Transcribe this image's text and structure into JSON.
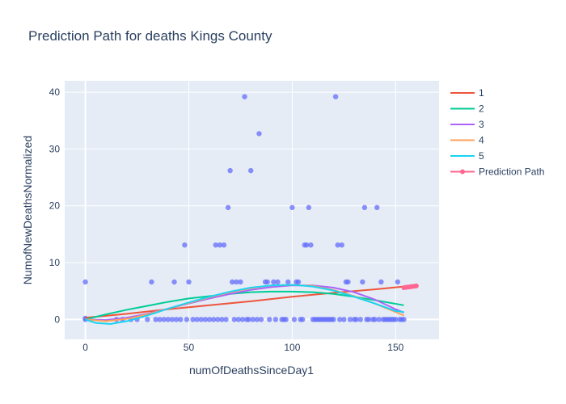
{
  "chart_data": {
    "type": "scatter",
    "title": "Prediction Path for deaths Kings County",
    "xlabel": "numOfDeathsSinceDay1",
    "ylabel": "NumofNewDeathsNormalized",
    "xlim": [
      -10,
      171
    ],
    "ylim": [
      -3.5,
      42
    ],
    "xticks": [
      0,
      50,
      100,
      150
    ],
    "yticks": [
      0,
      10,
      20,
      30,
      40
    ],
    "grid": true,
    "legend_position": "top-right",
    "scatter_color": "#636efa",
    "scatter_points": [
      [
        0,
        6.6
      ],
      [
        0,
        0.2
      ],
      [
        0,
        0.0
      ],
      [
        32,
        6.6
      ],
      [
        43,
        6.6
      ],
      [
        48,
        13.1
      ],
      [
        50,
        6.6
      ],
      [
        63,
        13.1
      ],
      [
        65,
        13.1
      ],
      [
        67,
        13.1
      ],
      [
        69,
        19.7
      ],
      [
        70,
        26.2
      ],
      [
        71,
        6.6
      ],
      [
        73,
        6.6
      ],
      [
        75,
        6.6
      ],
      [
        77,
        39.2
      ],
      [
        80,
        26.2
      ],
      [
        84,
        32.7
      ],
      [
        87,
        6.6
      ],
      [
        88,
        6.6
      ],
      [
        91,
        6.6
      ],
      [
        93,
        6.6
      ],
      [
        98,
        6.6
      ],
      [
        100,
        19.7
      ],
      [
        102,
        6.6
      ],
      [
        103,
        6.6
      ],
      [
        106,
        13.1
      ],
      [
        107,
        13.1
      ],
      [
        108,
        19.7
      ],
      [
        109,
        13.1
      ],
      [
        121,
        39.2
      ],
      [
        122,
        13.1
      ],
      [
        124,
        13.1
      ],
      [
        126,
        6.6
      ],
      [
        127,
        6.6
      ],
      [
        135,
        19.7
      ],
      [
        134,
        6.6
      ],
      [
        141,
        19.7
      ],
      [
        143,
        6.6
      ],
      [
        151,
        6.6
      ],
      [
        15,
        0
      ],
      [
        18,
        0
      ],
      [
        22,
        0
      ],
      [
        25,
        0
      ],
      [
        30,
        0
      ],
      [
        34,
        0
      ],
      [
        36,
        0
      ],
      [
        38,
        0
      ],
      [
        40,
        0
      ],
      [
        42,
        0
      ],
      [
        44,
        0
      ],
      [
        46,
        0
      ],
      [
        49,
        0
      ],
      [
        52,
        0
      ],
      [
        54,
        0
      ],
      [
        56,
        0
      ],
      [
        58,
        0
      ],
      [
        60,
        0
      ],
      [
        62,
        0
      ],
      [
        64,
        0
      ],
      [
        66,
        0
      ],
      [
        68,
        0
      ],
      [
        72,
        0
      ],
      [
        74,
        0
      ],
      [
        76,
        0
      ],
      [
        78,
        0
      ],
      [
        79,
        0
      ],
      [
        81,
        0
      ],
      [
        83,
        0
      ],
      [
        85,
        0
      ],
      [
        89,
        0
      ],
      [
        92,
        0
      ],
      [
        95,
        0
      ],
      [
        96,
        0
      ],
      [
        97,
        0
      ],
      [
        101,
        0
      ],
      [
        104,
        0
      ],
      [
        105,
        0
      ],
      [
        110,
        0
      ],
      [
        111,
        0
      ],
      [
        112,
        0
      ],
      [
        113,
        0
      ],
      [
        114,
        0
      ],
      [
        115,
        0
      ],
      [
        116,
        0
      ],
      [
        117,
        0
      ],
      [
        118,
        0
      ],
      [
        119,
        0
      ],
      [
        120,
        0
      ],
      [
        123,
        0
      ],
      [
        125,
        0
      ],
      [
        128,
        0
      ],
      [
        130,
        0
      ],
      [
        131,
        0
      ],
      [
        133,
        0
      ],
      [
        136,
        0
      ],
      [
        137,
        0
      ],
      [
        139,
        0
      ],
      [
        140,
        0
      ],
      [
        142,
        0
      ],
      [
        144,
        0
      ],
      [
        145,
        0
      ],
      [
        146,
        0
      ],
      [
        147,
        0
      ],
      [
        148,
        0
      ],
      [
        149,
        0
      ],
      [
        150,
        0
      ],
      [
        152,
        0
      ],
      [
        153,
        0
      ],
      [
        154,
        0
      ]
    ],
    "series": [
      {
        "name": "1",
        "color": "#ef553b",
        "points": [
          [
            0,
            0.3
          ],
          [
            20,
            1.0
          ],
          [
            40,
            1.8
          ],
          [
            60,
            2.5
          ],
          [
            80,
            3.2
          ],
          [
            100,
            4.0
          ],
          [
            120,
            4.7
          ],
          [
            140,
            5.3
          ],
          [
            154,
            5.8
          ]
        ]
      },
      {
        "name": "2",
        "color": "#00cc96",
        "points": [
          [
            0,
            0.0
          ],
          [
            10,
            0.9
          ],
          [
            20,
            1.7
          ],
          [
            30,
            2.4
          ],
          [
            40,
            3.1
          ],
          [
            50,
            3.7
          ],
          [
            60,
            4.1
          ],
          [
            70,
            4.5
          ],
          [
            80,
            4.8
          ],
          [
            90,
            4.9
          ],
          [
            100,
            4.9
          ],
          [
            110,
            4.8
          ],
          [
            120,
            4.5
          ],
          [
            130,
            4.0
          ],
          [
            140,
            3.4
          ],
          [
            154,
            2.5
          ]
        ]
      },
      {
        "name": "3",
        "color": "#ab63fa",
        "points": [
          [
            0,
            0.0
          ],
          [
            10,
            -0.1
          ],
          [
            20,
            0.3
          ],
          [
            30,
            1.0
          ],
          [
            40,
            1.9
          ],
          [
            50,
            2.8
          ],
          [
            60,
            3.7
          ],
          [
            70,
            4.5
          ],
          [
            80,
            5.2
          ],
          [
            90,
            5.7
          ],
          [
            100,
            6.0
          ],
          [
            110,
            6.0
          ],
          [
            120,
            5.6
          ],
          [
            130,
            4.8
          ],
          [
            140,
            3.5
          ],
          [
            150,
            1.8
          ],
          [
            154,
            1.2
          ]
        ]
      },
      {
        "name": "4",
        "color": "#ffa15a",
        "points": [
          [
            0,
            0.0
          ],
          [
            10,
            -0.3
          ],
          [
            20,
            0.1
          ],
          [
            30,
            0.9
          ],
          [
            40,
            1.9
          ],
          [
            50,
            2.9
          ],
          [
            60,
            3.9
          ],
          [
            70,
            4.8
          ],
          [
            80,
            5.5
          ],
          [
            90,
            6.0
          ],
          [
            100,
            6.1
          ],
          [
            110,
            5.9
          ],
          [
            120,
            5.2
          ],
          [
            130,
            4.1
          ],
          [
            140,
            2.8
          ],
          [
            150,
            1.3
          ],
          [
            154,
            0.7
          ]
        ]
      },
      {
        "name": "5",
        "color": "#19d3f3",
        "points": [
          [
            0,
            0.0
          ],
          [
            5,
            -0.6
          ],
          [
            12,
            -0.8
          ],
          [
            20,
            -0.3
          ],
          [
            30,
            0.7
          ],
          [
            40,
            1.9
          ],
          [
            50,
            3.0
          ],
          [
            60,
            4.0
          ],
          [
            70,
            4.9
          ],
          [
            80,
            5.6
          ],
          [
            90,
            6.0
          ],
          [
            100,
            6.1
          ],
          [
            110,
            5.8
          ],
          [
            120,
            5.1
          ],
          [
            130,
            4.0
          ],
          [
            140,
            2.8
          ],
          [
            150,
            1.5
          ],
          [
            154,
            1.3
          ]
        ]
      },
      {
        "name": "Prediction Path",
        "color": "#ff6692",
        "markers": true,
        "points": [
          [
            154,
            5.6
          ],
          [
            155,
            5.65
          ],
          [
            156,
            5.7
          ],
          [
            157,
            5.75
          ],
          [
            158,
            5.8
          ],
          [
            159,
            5.85
          ],
          [
            160,
            5.9
          ]
        ]
      }
    ]
  }
}
